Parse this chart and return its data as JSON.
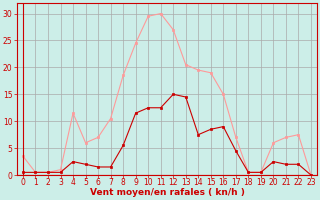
{
  "x": [
    0,
    1,
    2,
    3,
    4,
    5,
    6,
    7,
    8,
    9,
    10,
    11,
    12,
    13,
    14,
    15,
    16,
    17,
    18,
    19,
    20,
    21,
    22,
    23
  ],
  "rafales": [
    3.5,
    0.5,
    0.5,
    1.0,
    11.5,
    6.0,
    7.0,
    10.5,
    18.5,
    24.5,
    29.5,
    30.0,
    27.0,
    20.5,
    19.5,
    19.0,
    15.0,
    7.0,
    0.5,
    0.5,
    6.0,
    7.0,
    7.5,
    0
  ],
  "moyen": [
    0.5,
    0.5,
    0.5,
    0.5,
    2.5,
    2.0,
    1.5,
    1.5,
    5.5,
    11.5,
    12.5,
    12.5,
    15.0,
    14.5,
    7.5,
    8.5,
    9.0,
    4.5,
    0.5,
    0.5,
    2.5,
    2.0,
    2.0,
    0
  ],
  "bg_color": "#cceee8",
  "line_color_rafales": "#ff9999",
  "line_color_moyen": "#cc0000",
  "grid_color": "#aaaaaa",
  "axis_color": "#cc0000",
  "tick_color": "#cc0000",
  "xlabel": "Vent moyen/en rafales ( kn/h )",
  "ylim": [
    0,
    32
  ],
  "xlim_min": -0.5,
  "xlim_max": 23.5,
  "yticks": [
    0,
    5,
    10,
    15,
    20,
    25,
    30
  ],
  "xticks": [
    0,
    1,
    2,
    3,
    4,
    5,
    6,
    7,
    8,
    9,
    10,
    11,
    12,
    13,
    14,
    15,
    16,
    17,
    18,
    19,
    20,
    21,
    22,
    23
  ],
  "tick_fontsize": 5.5,
  "xlabel_fontsize": 6.5
}
